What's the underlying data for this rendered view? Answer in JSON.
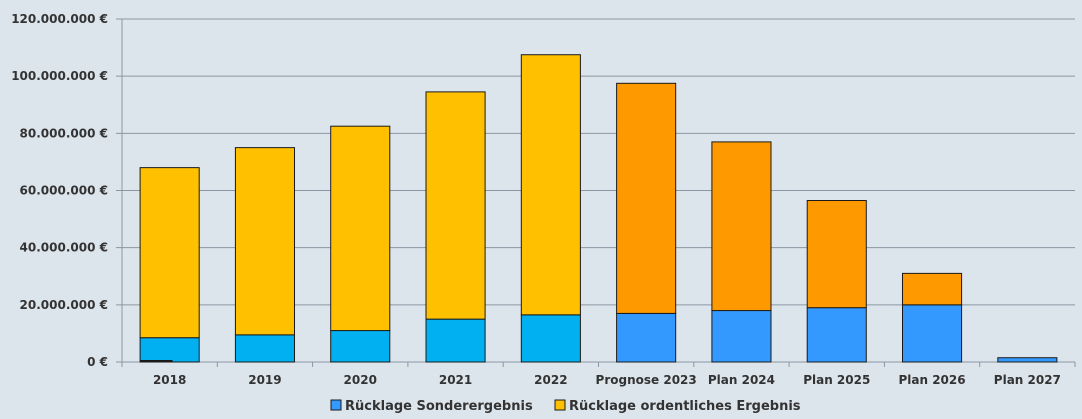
{
  "chart_data": {
    "type": "bar",
    "stacked": true,
    "categories": [
      "2018",
      "2019",
      "2020",
      "2021",
      "2022",
      "Prognose 2023",
      "Plan 2024",
      "Plan 2025",
      "Plan 2026",
      "Plan 2027"
    ],
    "series": [
      {
        "name": "Rücklage Sonderergebnis",
        "values": [
          8500000,
          9500000,
          11000000,
          15000000,
          16500000,
          17000000,
          18000000,
          19000000,
          20000000,
          1500000
        ]
      },
      {
        "name": "Rücklage ordentliches Ergebnis",
        "values": [
          59500000,
          65500000,
          71500000,
          79500000,
          91000000,
          80500000,
          59000000,
          37500000,
          11000000,
          0
        ]
      }
    ],
    "colors": {
      "sonder_actual": "#00b0f0",
      "sonder_plan": "#3399ff",
      "ordentlich_actual": "#ffc000",
      "ordentlich_plan": "#ff9900"
    },
    "ylim": [
      0,
      120000000
    ],
    "yticks": [
      "0 €",
      "20.000.000 €",
      "40.000.000 €",
      "60.000.000 €",
      "80.000.000 €",
      "100.000.000 €",
      "120.000.000 €"
    ],
    "grid": true,
    "legend_position": "bottom"
  }
}
